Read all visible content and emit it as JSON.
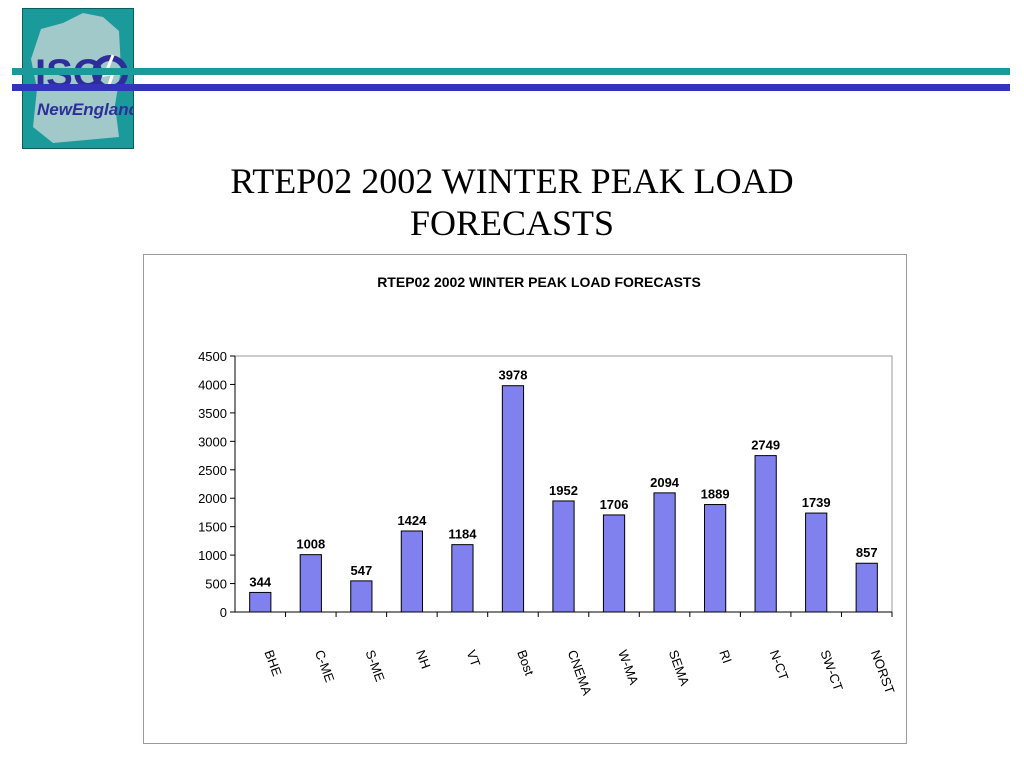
{
  "logo": {
    "line1": "ISO",
    "line2": "NewEngland"
  },
  "colors": {
    "accent_teal": "#1a9a9a",
    "accent_blue": "#3333bb",
    "bar_fill": "#8080ee",
    "bar_stroke": "#000000"
  },
  "slide": {
    "title": "RTEP02 2002 WINTER PEAK LOAD\nFORECASTS"
  },
  "chart_data": {
    "type": "bar",
    "title": "RTEP02 2002 WINTER PEAK LOAD FORECASTS",
    "categories": [
      "BHE",
      "C-ME",
      "S-ME",
      "NH",
      "VT",
      "Bost",
      "CNEMA",
      "W-MA",
      "SEMA",
      "RI",
      "N-CT",
      "SW-CT",
      "NORST"
    ],
    "values": [
      344,
      1008,
      547,
      1424,
      1184,
      3978,
      1952,
      1706,
      2094,
      1889,
      2749,
      1739,
      857
    ],
    "ylim": [
      0,
      4500
    ],
    "yticks": [
      0,
      500,
      1000,
      1500,
      2000,
      2500,
      3000,
      3500,
      4000,
      4500
    ],
    "xlabel": "",
    "ylabel": "",
    "data_labels": true,
    "grid": false,
    "legend": "none"
  }
}
